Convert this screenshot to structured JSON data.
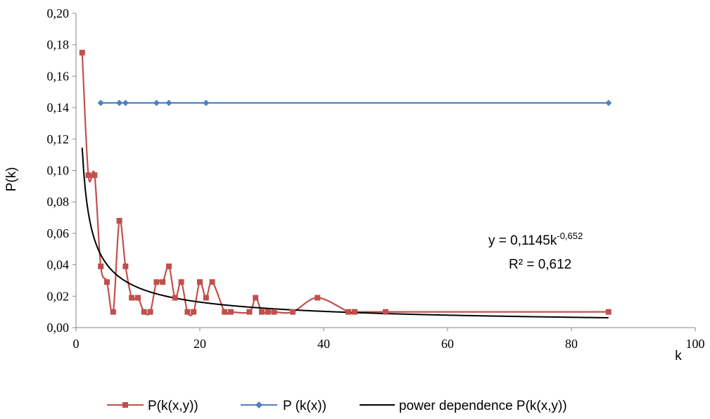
{
  "chart_data": {
    "type": "line",
    "xlabel": "k",
    "ylabel": "P(k)",
    "xlim": [
      0,
      100
    ],
    "ylim": [
      0,
      0.2
    ],
    "x_ticks": [
      "0",
      "20",
      "40",
      "60",
      "80",
      "100"
    ],
    "y_ticks": [
      "0,00",
      "0,02",
      "0,04",
      "0,06",
      "0,08",
      "0,10",
      "0,12",
      "0,14",
      "0,16",
      "0,18",
      "0,20"
    ],
    "x_tick_values": [
      0,
      20,
      40,
      60,
      80,
      100
    ],
    "y_tick_values": [
      0,
      0.02,
      0.04,
      0.06,
      0.08,
      0.1,
      0.12,
      0.14,
      0.16,
      0.18,
      0.2
    ],
    "grid": false,
    "legend_position": "bottom",
    "series": [
      {
        "name": "P(k(x,y))",
        "color": "#c0504d",
        "marker": "square",
        "smooth": true,
        "points": [
          [
            1,
            0.175
          ],
          [
            2,
            0.097
          ],
          [
            3,
            0.097
          ],
          [
            4,
            0.039
          ],
          [
            5,
            0.029
          ],
          [
            6,
            0.01
          ],
          [
            7,
            0.068
          ],
          [
            8,
            0.039
          ],
          [
            9,
            0.019
          ],
          [
            10,
            0.019
          ],
          [
            11,
            0.01
          ],
          [
            12,
            0.01
          ],
          [
            13,
            0.029
          ],
          [
            14,
            0.029
          ],
          [
            15,
            0.039
          ],
          [
            16,
            0.019
          ],
          [
            17,
            0.029
          ],
          [
            18,
            0.01
          ],
          [
            19,
            0.01
          ],
          [
            20,
            0.029
          ],
          [
            21,
            0.019
          ],
          [
            22,
            0.029
          ],
          [
            24,
            0.01
          ],
          [
            25,
            0.01
          ],
          [
            28,
            0.01
          ],
          [
            29,
            0.019
          ],
          [
            30,
            0.01
          ],
          [
            31,
            0.01
          ],
          [
            32,
            0.01
          ],
          [
            35,
            0.01
          ],
          [
            39,
            0.019
          ],
          [
            44,
            0.01
          ],
          [
            45,
            0.01
          ],
          [
            50,
            0.01
          ],
          [
            86,
            0.01
          ]
        ]
      },
      {
        "name": "P (k(x))",
        "color": "#4f81bd",
        "marker": "diamond",
        "smooth": false,
        "points": [
          [
            4,
            0.143
          ],
          [
            7,
            0.143
          ],
          [
            8,
            0.143
          ],
          [
            13,
            0.143
          ],
          [
            15,
            0.143
          ],
          [
            21,
            0.143
          ],
          [
            86,
            0.143
          ]
        ]
      },
      {
        "name": "power dependence P(k(x,y))",
        "color": "#000000",
        "marker": "none",
        "function": "power",
        "coefficient": 0.1145,
        "exponent": -0.652,
        "x_range": [
          1,
          86
        ]
      }
    ],
    "annotation": {
      "equation_base": "y = 0,1145k",
      "equation_exponent": "-0,652",
      "r_squared": "R² = 0,612"
    }
  }
}
